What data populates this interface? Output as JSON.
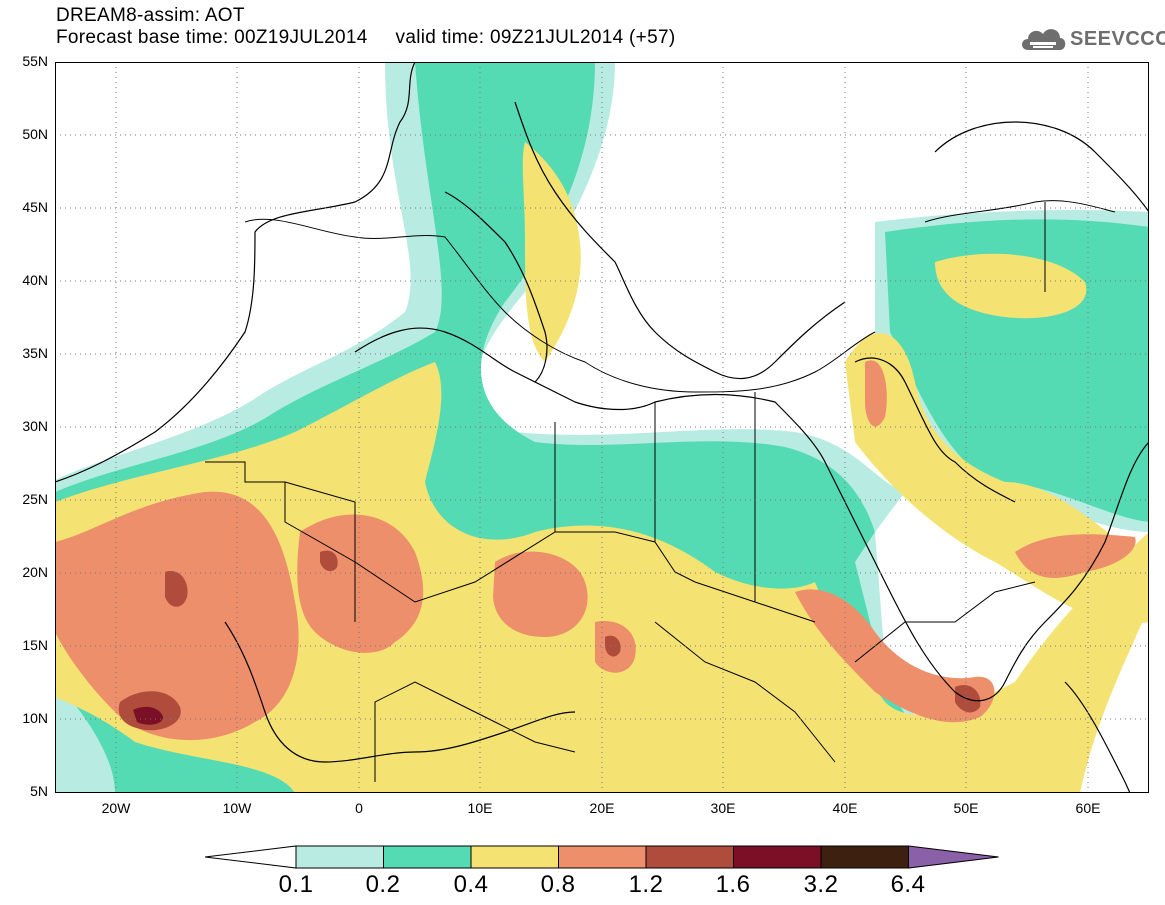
{
  "title": {
    "line1": "DREAM8-assim: AOT",
    "line2": "Forecast base time: 00Z19JUL2014     valid time: 09Z21JUL2014 (+57)"
  },
  "logo": {
    "text": "SEEVCCC",
    "icon": "cloud-icon",
    "color": "#6e6e6e"
  },
  "map": {
    "lat_ticks": [
      "55N",
      "50N",
      "45N",
      "40N",
      "35N",
      "30N",
      "25N",
      "20N",
      "15N",
      "10N",
      "5N"
    ],
    "lon_ticks": [
      "20W",
      "10W",
      "0",
      "10E",
      "20E",
      "30E",
      "40E",
      "50E",
      "60E"
    ],
    "extent": {
      "lon": [
        -25,
        65
      ],
      "lat": [
        5,
        55
      ]
    }
  },
  "colorbar": {
    "labels": [
      "0.1",
      "0.2",
      "0.4",
      "0.8",
      "1.2",
      "1.6",
      "3.2",
      "6.4"
    ],
    "colors": [
      "#ffffff",
      "#b8ece2",
      "#55dbb3",
      "#f4e273",
      "#ec8f6a",
      "#b04c3c",
      "#7a0f26",
      "#3e2010",
      "#8a60a8"
    ]
  }
}
